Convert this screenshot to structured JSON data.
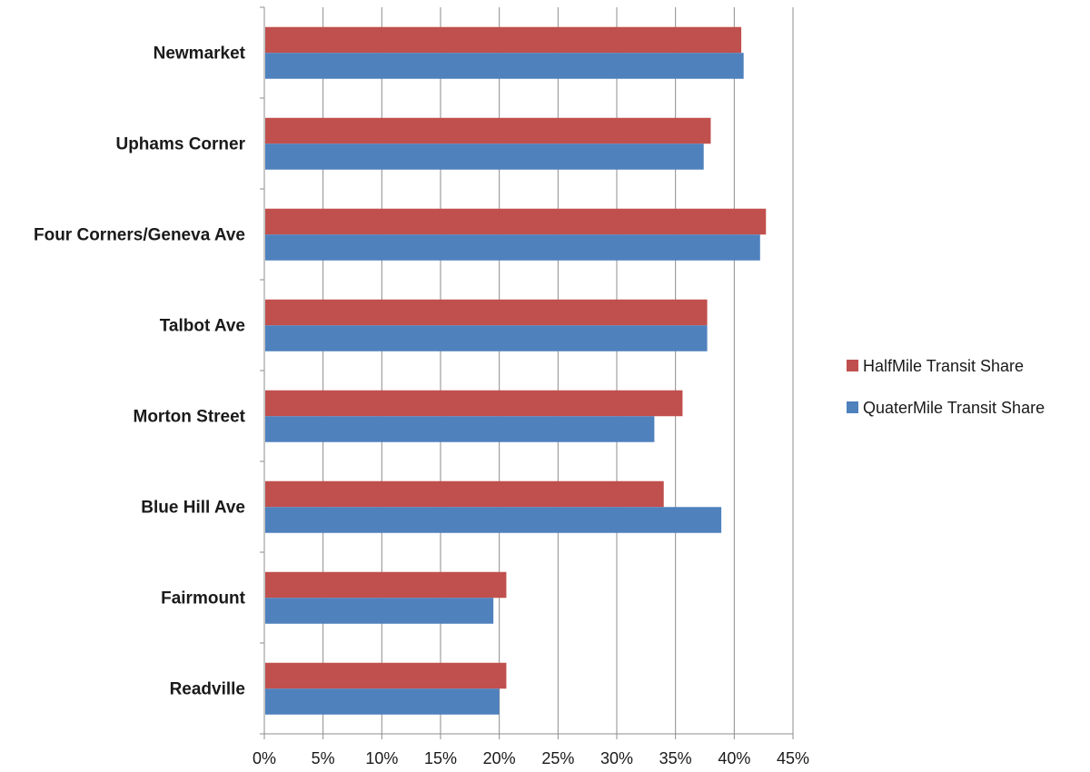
{
  "chart_data": {
    "type": "bar",
    "orientation": "horizontal",
    "categories": [
      "Newmarket",
      "Uphams Corner",
      "Four Corners/Geneva Ave",
      "Talbot Ave",
      "Morton Street",
      "Blue Hill Ave",
      "Fairmount",
      "Readville"
    ],
    "series": [
      {
        "name": "HalfMile Transit Share",
        "color": "#c0504d",
        "values": [
          40.6,
          38.0,
          42.7,
          37.7,
          35.6,
          34.0,
          20.6,
          20.6
        ]
      },
      {
        "name": "QuaterMile Transit Share",
        "color": "#4f81bd",
        "values": [
          40.8,
          37.4,
          42.2,
          37.7,
          33.2,
          38.9,
          19.5,
          20.0
        ]
      }
    ],
    "xlim": [
      0,
      45
    ],
    "x_ticks": [
      "0%",
      "5%",
      "10%",
      "15%",
      "20%",
      "25%",
      "30%",
      "35%",
      "40%",
      "45%"
    ],
    "x_tick_step": 5,
    "grid": true,
    "legend_position": "right"
  }
}
